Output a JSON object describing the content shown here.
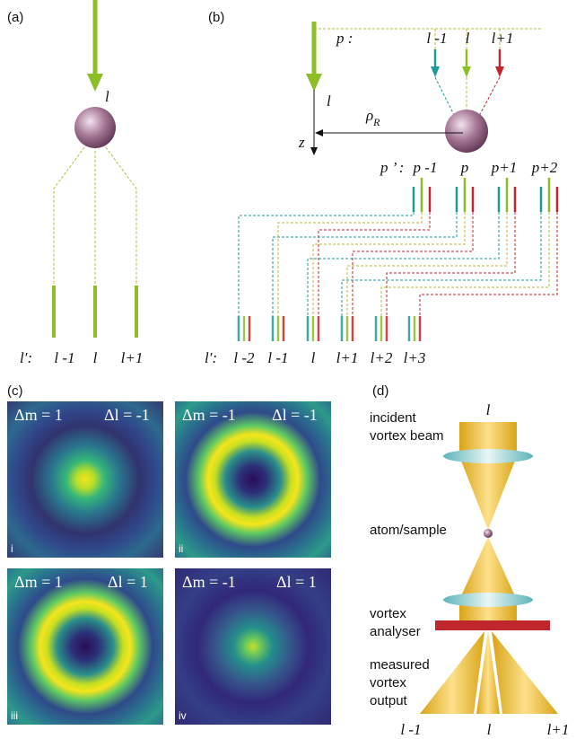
{
  "panel_a": {
    "label": "(a)",
    "beam": "l",
    "prefix": "l′:",
    "outputs": [
      "l -1",
      "l",
      "l+1"
    ]
  },
  "panel_b": {
    "label": "(b)",
    "p_prefix": "p :",
    "p_labels": [
      "l -1",
      "l",
      "l+1"
    ],
    "beam": "l",
    "radius": {
      "symbol": "ρ",
      "subscript": "R"
    },
    "axis": "z",
    "p2_prefix": "p ’ :",
    "p2_labels": [
      "p -1",
      "p",
      "p+1",
      "p+2"
    ],
    "out_prefix": "l′:",
    "out_labels": [
      "l -2",
      "l -1",
      "l",
      "l+1",
      "l+2",
      "l+3"
    ]
  },
  "panel_c": {
    "label": "(c)",
    "images": [
      {
        "dm": "Δm = 1",
        "dl": "Δl = -1",
        "tag": "i"
      },
      {
        "dm": "Δm = -1",
        "dl": "Δl = -1",
        "tag": "ii"
      },
      {
        "dm": "Δm = 1",
        "dl": "Δl = 1",
        "tag": "iii"
      },
      {
        "dm": "Δm = -1",
        "dl": "Δl = 1",
        "tag": "iv"
      }
    ]
  },
  "panel_d": {
    "label": "(d)",
    "beam": "l",
    "incident": [
      "incident",
      "vortex beam"
    ],
    "sample": "atom/sample",
    "analyser": [
      "vortex",
      "analyser"
    ],
    "output": [
      "measured",
      "vortex",
      "output"
    ],
    "outputs": [
      "l -1",
      "l",
      "l+1"
    ]
  }
}
